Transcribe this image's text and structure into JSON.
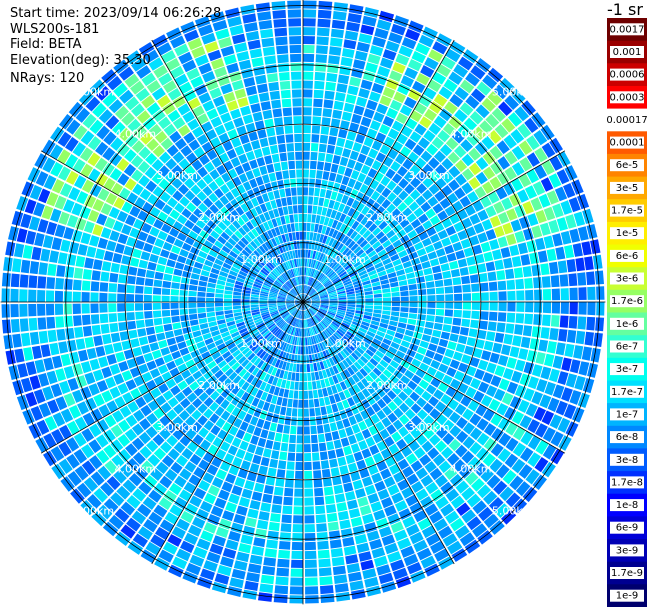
{
  "header": {
    "start_time": "Start time: 2023/09/14 06:26:28",
    "instrument": "WLS200s-181",
    "field": "Field: BETA",
    "elevation": "Elevation(deg): 35.30",
    "nrays": "NRays: 120"
  },
  "chart_data": {
    "type": "heatmap",
    "projection": "polar-ppi",
    "field": "BETA",
    "n_rays": 120,
    "range_rings_km": [
      1.0,
      2.0,
      3.0,
      4.0,
      5.0
    ],
    "range_labels": [
      "1.00km",
      "2.00km",
      "3.00km",
      "4.00km",
      "5.00km"
    ],
    "max_range_km": 5.1,
    "spoke_angles_deg": [
      0,
      30,
      60,
      90,
      120,
      150,
      180,
      210,
      240,
      270,
      300,
      330
    ],
    "enhanced_band_km": [
      3.3,
      4.7
    ],
    "colorbar": {
      "unit_label": "-1 sr",
      "labels": [
        "0.0017",
        "0.001",
        "0.0006",
        "0.0003",
        "0.00017",
        "0.0001",
        "6e-5",
        "3e-5",
        "1.7e-5",
        "1e-5",
        "6e-6",
        "3e-6",
        "1.7e-6",
        "1e-6",
        "6e-7",
        "3e-7",
        "1.7e-7",
        "1e-7",
        "6e-8",
        "3e-8",
        "1.7e-8",
        "1e-8",
        "6e-9",
        "3e-9",
        "1.7e-9",
        "1e-9"
      ],
      "colors": [
        "#6e0000",
        "#9a0000",
        "#cc0000",
        "#ff0000",
        "#ffffff",
        "#ff5a00",
        "#ff8400",
        "#ffa800",
        "#ffcc00",
        "#ffee00",
        "#f0ff00",
        "#c8ff32",
        "#96ff64",
        "#64ffa0",
        "#32ffd2",
        "#00ffee",
        "#00e0ff",
        "#00b4ff",
        "#0088ff",
        "#005cff",
        "#0030ff",
        "#0000ff",
        "#0000d8",
        "#0000b4",
        "#000090",
        "#00006e"
      ]
    }
  }
}
